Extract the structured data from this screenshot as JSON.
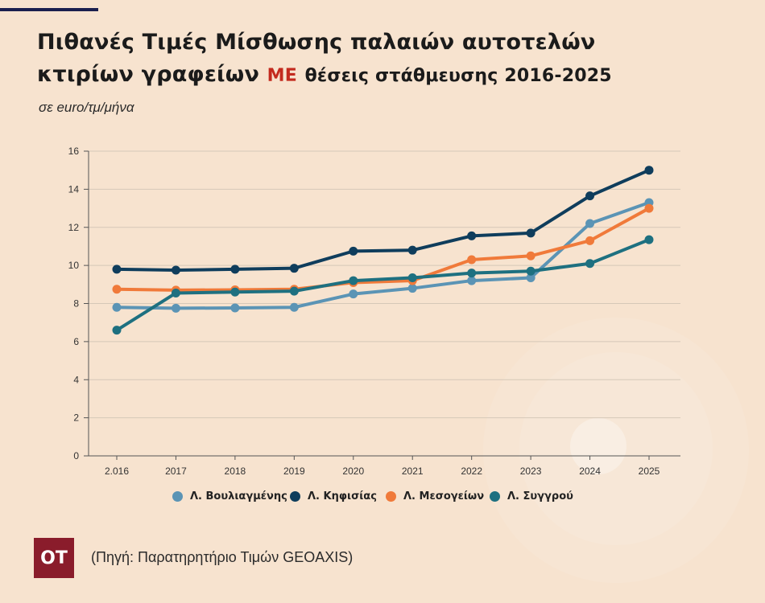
{
  "header": {
    "title_line1": "Πιθανές Τιμές Μίσθωσης παλαιών αυτοτελών",
    "title_line2_a": "κτιρίων γραφείων",
    "title_highlight": "ΜΕ",
    "title_line2_b": "θέσεις στάθμευσης 2016-2025",
    "subtitle": "σε euro/τμ/μήνα"
  },
  "colors": {
    "background": "#f7e3cf",
    "highlight": "#c32a1e",
    "logo_bg": "#8a1c2b"
  },
  "chart_data": {
    "type": "line",
    "title": "",
    "xlabel": "",
    "ylabel": "",
    "categories": [
      "2.016",
      "2017",
      "2018",
      "2019",
      "2020",
      "2021",
      "2022",
      "2023",
      "2024",
      "2025"
    ],
    "ylim": [
      0,
      16
    ],
    "yticks": [
      0,
      2,
      4,
      6,
      8,
      10,
      12,
      14,
      16
    ],
    "grid": true,
    "legend_position": "bottom",
    "series": [
      {
        "name": "Λ. Βουλιαγμένης",
        "color": "#5b94b5",
        "values": [
          7.8,
          7.75,
          7.77,
          7.8,
          8.5,
          8.8,
          9.2,
          9.35,
          12.2,
          13.3
        ]
      },
      {
        "name": "Λ. Κηφισίας",
        "color": "#0f3d5c",
        "values": [
          9.8,
          9.75,
          9.8,
          9.85,
          10.75,
          10.8,
          11.55,
          11.7,
          13.65,
          15.0
        ]
      },
      {
        "name": "Λ. Μεσογείων",
        "color": "#f07a3a",
        "values": [
          8.75,
          8.7,
          8.72,
          8.75,
          9.1,
          9.2,
          10.3,
          10.5,
          11.3,
          13.0
        ]
      },
      {
        "name": "Λ. Συγγρού",
        "color": "#1e7080",
        "values": [
          6.6,
          8.55,
          8.6,
          8.65,
          9.2,
          9.35,
          9.6,
          9.7,
          10.1,
          11.35
        ]
      }
    ]
  },
  "footer": {
    "logo_text": "ΟΤ",
    "source": "(Πηγή: Παρατηρητήριο Τιμών GEOAXIS)"
  }
}
